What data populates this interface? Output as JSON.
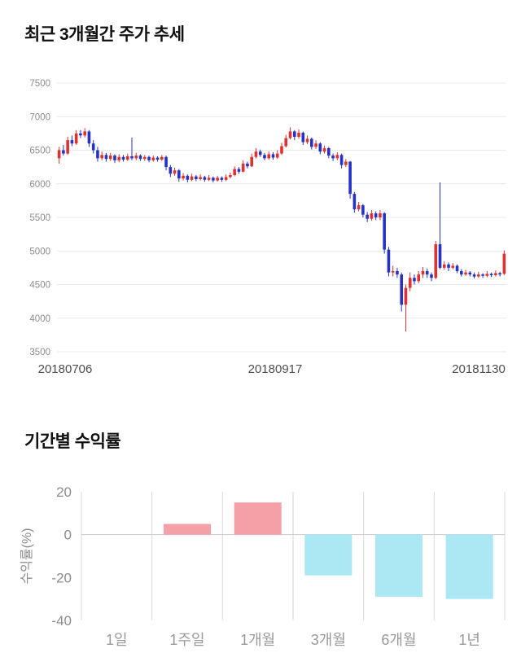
{
  "chart_data": [
    {
      "type": "candlestick",
      "title": "최근 3개월간 주가 추세",
      "ylim": [
        3500,
        7500
      ],
      "yticks": [
        7500,
        7000,
        6500,
        6000,
        5500,
        5000,
        4500,
        4000,
        3500
      ],
      "xticks": [
        "20180706",
        "20180917",
        "20181130"
      ],
      "grid": "horizontal",
      "up_color": "#e03131",
      "down_color": "#2433c4",
      "grid_color": "#e8e8e8",
      "tick_color": "#8c8c8c",
      "date_color": "#4d4d4d",
      "candles_format": "[open, high, low, close]",
      "candles": [
        [
          6380,
          6550,
          6300,
          6500
        ],
        [
          6500,
          6580,
          6420,
          6450
        ],
        [
          6450,
          6700,
          6430,
          6650
        ],
        [
          6650,
          6720,
          6560,
          6600
        ],
        [
          6600,
          6800,
          6580,
          6750
        ],
        [
          6750,
          6800,
          6680,
          6720
        ],
        [
          6720,
          6830,
          6690,
          6780
        ],
        [
          6780,
          6800,
          6550,
          6600
        ],
        [
          6600,
          6650,
          6450,
          6500
        ],
        [
          6500,
          6550,
          6330,
          6380
        ],
        [
          6380,
          6480,
          6350,
          6430
        ],
        [
          6430,
          6460,
          6330,
          6370
        ],
        [
          6370,
          6460,
          6340,
          6420
        ],
        [
          6420,
          6440,
          6310,
          6350
        ],
        [
          6350,
          6440,
          6320,
          6400
        ],
        [
          6400,
          6430,
          6330,
          6360
        ],
        [
          6360,
          6450,
          6340,
          6410
        ],
        [
          6410,
          6690,
          6350,
          6380
        ],
        [
          6380,
          6460,
          6350,
          6420
        ],
        [
          6420,
          6440,
          6340,
          6370
        ],
        [
          6370,
          6430,
          6340,
          6400
        ],
        [
          6400,
          6420,
          6320,
          6350
        ],
        [
          6350,
          6420,
          6330,
          6390
        ],
        [
          6390,
          6410,
          6330,
          6360
        ],
        [
          6360,
          6430,
          6340,
          6400
        ],
        [
          6400,
          6420,
          6200,
          6250
        ],
        [
          6250,
          6280,
          6100,
          6150
        ],
        [
          6150,
          6240,
          6120,
          6200
        ],
        [
          6200,
          6220,
          6030,
          6080
        ],
        [
          6080,
          6160,
          6050,
          6120
        ],
        [
          6120,
          6140,
          6020,
          6060
        ],
        [
          6060,
          6150,
          6040,
          6110
        ],
        [
          6110,
          6130,
          6040,
          6070
        ],
        [
          6070,
          6140,
          6050,
          6100
        ],
        [
          6100,
          6120,
          6030,
          6060
        ],
        [
          6060,
          6130,
          6040,
          6090
        ],
        [
          6090,
          6110,
          6020,
          6050
        ],
        [
          6050,
          6120,
          6030,
          6090
        ],
        [
          6090,
          6110,
          6030,
          6060
        ],
        [
          6060,
          6140,
          6040,
          6100
        ],
        [
          6100,
          6170,
          6080,
          6130
        ],
        [
          6130,
          6260,
          6110,
          6220
        ],
        [
          6220,
          6250,
          6150,
          6180
        ],
        [
          6180,
          6350,
          6170,
          6300
        ],
        [
          6300,
          6330,
          6230,
          6260
        ],
        [
          6260,
          6450,
          6250,
          6400
        ],
        [
          6400,
          6530,
          6380,
          6480
        ],
        [
          6480,
          6510,
          6400,
          6430
        ],
        [
          6430,
          6460,
          6350,
          6380
        ],
        [
          6380,
          6480,
          6360,
          6440
        ],
        [
          6440,
          6470,
          6360,
          6390
        ],
        [
          6390,
          6500,
          6370,
          6450
        ],
        [
          6450,
          6610,
          6430,
          6560
        ],
        [
          6560,
          6730,
          6540,
          6680
        ],
        [
          6680,
          6840,
          6660,
          6780
        ],
        [
          6780,
          6800,
          6650,
          6700
        ],
        [
          6700,
          6810,
          6670,
          6760
        ],
        [
          6760,
          6780,
          6580,
          6620
        ],
        [
          6620,
          6720,
          6590,
          6670
        ],
        [
          6670,
          6690,
          6510,
          6550
        ],
        [
          6550,
          6650,
          6520,
          6600
        ],
        [
          6600,
          6620,
          6440,
          6480
        ],
        [
          6480,
          6570,
          6450,
          6530
        ],
        [
          6530,
          6550,
          6380,
          6420
        ],
        [
          6420,
          6450,
          6340,
          6380
        ],
        [
          6380,
          6470,
          6350,
          6430
        ],
        [
          6430,
          6450,
          6230,
          6280
        ],
        [
          6280,
          6370,
          6250,
          6330
        ],
        [
          6330,
          6340,
          5780,
          5850
        ],
        [
          5850,
          5880,
          5570,
          5620
        ],
        [
          5620,
          5730,
          5590,
          5680
        ],
        [
          5680,
          5700,
          5500,
          5540
        ],
        [
          5540,
          5580,
          5430,
          5480
        ],
        [
          5480,
          5610,
          5450,
          5560
        ],
        [
          5560,
          5590,
          5460,
          5500
        ],
        [
          5500,
          5610,
          5460,
          5560
        ],
        [
          5560,
          5580,
          4960,
          5020
        ],
        [
          5020,
          5060,
          4620,
          4680
        ],
        [
          4680,
          4780,
          4620,
          4700
        ],
        [
          4700,
          4750,
          4600,
          4650
        ],
        [
          4650,
          4680,
          4100,
          4200
        ],
        [
          4200,
          4500,
          3800,
          4450
        ],
        [
          4450,
          4680,
          4400,
          4600
        ],
        [
          4600,
          4650,
          4500,
          4550
        ],
        [
          4550,
          4700,
          4520,
          4650
        ],
        [
          4650,
          4760,
          4600,
          4700
        ],
        [
          4700,
          4740,
          4600,
          4650
        ],
        [
          4650,
          4680,
          4550,
          4600
        ],
        [
          4600,
          5150,
          4580,
          5100
        ],
        [
          5100,
          6020,
          4730,
          4750
        ],
        [
          4750,
          4850,
          4720,
          4800
        ],
        [
          4800,
          4830,
          4700,
          4750
        ],
        [
          4750,
          4820,
          4730,
          4780
        ],
        [
          4780,
          4800,
          4670,
          4700
        ],
        [
          4700,
          4730,
          4620,
          4650
        ],
        [
          4650,
          4720,
          4630,
          4680
        ],
        [
          4680,
          4700,
          4620,
          4650
        ],
        [
          4650,
          4680,
          4590,
          4620
        ],
        [
          4620,
          4690,
          4600,
          4650
        ],
        [
          4650,
          4670,
          4600,
          4630
        ],
        [
          4630,
          4700,
          4610,
          4660
        ],
        [
          4660,
          4680,
          4610,
          4640
        ],
        [
          4640,
          4710,
          4620,
          4670
        ],
        [
          4670,
          4690,
          4620,
          4650
        ],
        [
          4660,
          5010,
          4640,
          4960
        ]
      ]
    },
    {
      "type": "bar",
      "title": "기간별 수익률",
      "ylabel": "수익률(%)",
      "categories": [
        "1일",
        "1주일",
        "1개월",
        "3개월",
        "6개월",
        "1년"
      ],
      "values": [
        0,
        5,
        15,
        -19,
        -29,
        -30
      ],
      "ylim": [
        -40,
        20
      ],
      "yticks": [
        20,
        0,
        -20,
        -40
      ],
      "grid": "vertical",
      "positive_color": "#f5a0a6",
      "negative_color": "#abe8f4",
      "grid_color": "#d9d9d9",
      "baseline_color": "#c9c9c9",
      "tick_color": "#8c8c8c",
      "category_color": "#999999"
    }
  ]
}
